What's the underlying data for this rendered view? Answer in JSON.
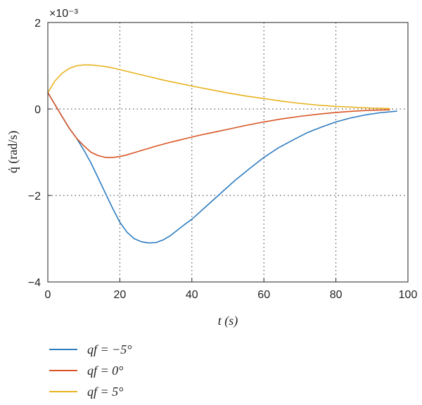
{
  "chart_data": {
    "type": "line",
    "title": "",
    "xlabel": "t (s)",
    "ylabel": "q̇ (rad/s)",
    "y_multiplier": "×10⁻³",
    "xlim": [
      0,
      100
    ],
    "ylim": [
      -4,
      2
    ],
    "x_ticks": [
      0,
      20,
      40,
      60,
      80,
      100
    ],
    "y_ticks": [
      2,
      0,
      -2,
      -4
    ],
    "y_tick_labels": [
      "2",
      "0",
      "−2",
      "−4"
    ],
    "grid": "dotted, x at 20/40/60/80, y at 0/−2",
    "legend_position": "below-left",
    "series": [
      {
        "name": "qf = −5°",
        "color": "#2e7cc0",
        "x": [
          0,
          2,
          4,
          6,
          8,
          10,
          12,
          14,
          16,
          18,
          20,
          22,
          24,
          26,
          28,
          30,
          32,
          34,
          36,
          38,
          40,
          44,
          48,
          52,
          56,
          60,
          64,
          68,
          72,
          76,
          80,
          84,
          88,
          92,
          97
        ],
        "y": [
          0.38,
          0.1,
          -0.18,
          -0.45,
          -0.68,
          -0.95,
          -1.25,
          -1.6,
          -1.95,
          -2.3,
          -2.62,
          -2.85,
          -3.0,
          -3.07,
          -3.1,
          -3.09,
          -3.03,
          -2.93,
          -2.8,
          -2.67,
          -2.55,
          -2.25,
          -1.95,
          -1.65,
          -1.38,
          -1.12,
          -0.9,
          -0.72,
          -0.55,
          -0.42,
          -0.3,
          -0.21,
          -0.14,
          -0.09,
          -0.05
        ]
      },
      {
        "name": "qf = 0°",
        "color": "#d95424",
        "x": [
          0,
          2,
          4,
          6,
          8,
          10,
          12,
          14,
          16,
          18,
          20,
          22,
          24,
          26,
          28,
          30,
          34,
          38,
          42,
          46,
          50,
          55,
          60,
          65,
          70,
          75,
          80,
          85,
          90,
          95
        ],
        "y": [
          0.38,
          0.1,
          -0.18,
          -0.45,
          -0.68,
          -0.85,
          -1.0,
          -1.08,
          -1.12,
          -1.12,
          -1.1,
          -1.06,
          -1.01,
          -0.96,
          -0.91,
          -0.86,
          -0.77,
          -0.69,
          -0.61,
          -0.54,
          -0.47,
          -0.38,
          -0.3,
          -0.23,
          -0.17,
          -0.12,
          -0.08,
          -0.05,
          -0.03,
          -0.02
        ]
      },
      {
        "name": "qf = 5°",
        "color": "#e8b21d",
        "x": [
          0,
          2,
          4,
          6,
          8,
          10,
          12,
          14,
          16,
          18,
          20,
          24,
          28,
          32,
          36,
          40,
          45,
          50,
          55,
          60,
          65,
          70,
          75,
          80,
          85,
          90,
          95
        ],
        "y": [
          0.38,
          0.65,
          0.83,
          0.94,
          1.0,
          1.02,
          1.02,
          1.0,
          0.98,
          0.95,
          0.91,
          0.83,
          0.75,
          0.67,
          0.6,
          0.53,
          0.45,
          0.37,
          0.3,
          0.24,
          0.18,
          0.13,
          0.09,
          0.06,
          0.04,
          0.02,
          0.01
        ]
      }
    ]
  }
}
